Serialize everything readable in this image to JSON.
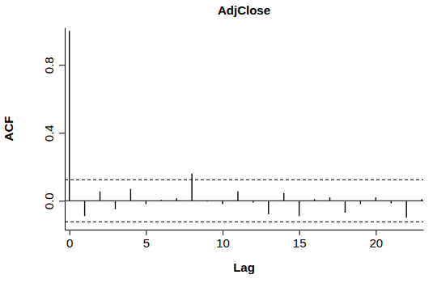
{
  "chart_data": {
    "type": "stem",
    "title": "AdjClose",
    "x_label": "Lag",
    "y_label": "ACF",
    "x": [
      0,
      1,
      2,
      3,
      4,
      5,
      6,
      7,
      8,
      9,
      10,
      11,
      12,
      13,
      14,
      15,
      16,
      17,
      18,
      19,
      20,
      21,
      22,
      23
    ],
    "values": [
      1.0,
      -0.09,
      0.055,
      -0.05,
      0.07,
      -0.02,
      0.005,
      0.015,
      0.16,
      -0.005,
      -0.02,
      0.055,
      -0.01,
      -0.08,
      0.045,
      -0.09,
      0.01,
      0.02,
      -0.07,
      -0.02,
      0.02,
      -0.015,
      -0.1,
      0.01
    ],
    "confidence_bounds": [
      -0.124,
      0.124
    ],
    "xlim": [
      -0.3,
      23.1
    ],
    "ylim": [
      -0.17,
      1.02
    ],
    "xticks": [
      0,
      5,
      10,
      15,
      20
    ],
    "yticks": [
      {
        "value": 0,
        "label": "0.0"
      },
      {
        "value": 0.4,
        "label": "0.4"
      },
      {
        "value": 0.8,
        "label": "0.8"
      }
    ],
    "color": "#000000",
    "grid": false
  }
}
